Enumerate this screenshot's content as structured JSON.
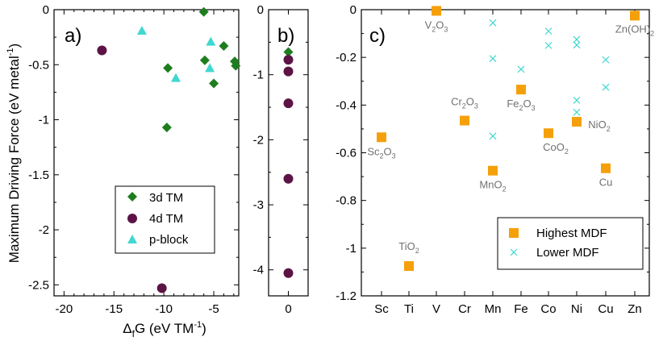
{
  "chart_data": [
    {
      "panel": "a)",
      "type": "scatter",
      "xlabel_main": "Δ",
      "xlabel_sub": "f",
      "xlabel_rest": "G (eV TM",
      "xlabel_sup": "-1",
      "xlabel_end": ")",
      "ylabel_main": "Maximum Driving Force (eV metal",
      "ylabel_sup": "-1",
      "ylabel_end": ")",
      "xlim": [
        -21,
        -2.5
      ],
      "ylim": [
        -2.6,
        0.0
      ],
      "xticks": [
        -20,
        -15,
        -10,
        -5
      ],
      "xtick_labels": [
        "-20",
        "-15",
        "-10",
        "-5"
      ],
      "yticks": [
        0,
        -0.5,
        -1,
        -1.5,
        -2,
        -2.5
      ],
      "ytick_labels": [
        "0",
        "-0.5",
        "-1",
        "-1.5",
        "-2",
        "-2.5"
      ],
      "legend_position": "bottom-right",
      "series": [
        {
          "name": "3d TM",
          "marker": "diamond",
          "color": "#1e7d1e",
          "points": [
            [
              -6.0,
              -0.02
            ],
            [
              -5.9,
              -0.46
            ],
            [
              -4.0,
              -0.33
            ],
            [
              -2.9,
              -0.47
            ],
            [
              -2.8,
              -0.51
            ],
            [
              -9.6,
              -0.53
            ],
            [
              -5.0,
              -0.67
            ],
            [
              -9.7,
              -1.07
            ]
          ]
        },
        {
          "name": "4d TM",
          "marker": "circle",
          "color": "#5c1446",
          "points": [
            [
              -16.2,
              -0.37
            ],
            [
              -10.2,
              -2.53
            ]
          ]
        },
        {
          "name": "p-block",
          "marker": "triangle",
          "color": "#40d8d0",
          "points": [
            [
              -12.2,
              -0.19
            ],
            [
              -5.3,
              -0.29
            ],
            [
              -5.4,
              -0.53
            ],
            [
              -8.8,
              -0.62
            ]
          ]
        }
      ]
    },
    {
      "panel": "b)",
      "type": "scatter",
      "xlim": [
        -1,
        1
      ],
      "ylim": [
        -4.4,
        0.0
      ],
      "xticks": [
        0
      ],
      "xtick_labels": [
        "0"
      ],
      "yticks": [
        0,
        -1,
        -2,
        -3,
        -4
      ],
      "ytick_labels": [
        "0",
        "-1",
        "-2",
        "-3",
        "-4"
      ],
      "series": [
        {
          "name": "3d TM",
          "marker": "diamond",
          "color": "#1e7d1e",
          "points": [
            [
              0,
              -0.65
            ]
          ]
        },
        {
          "name": "4d TM",
          "marker": "circle",
          "color": "#5c1446",
          "points": [
            [
              0,
              -0.77
            ],
            [
              0,
              -0.95
            ],
            [
              0,
              -1.44
            ],
            [
              0,
              -2.6
            ],
            [
              0,
              -4.05
            ]
          ]
        }
      ]
    },
    {
      "panel": "c)",
      "type": "scatter",
      "categories": [
        "Sc",
        "Ti",
        "V",
        "Cr",
        "Mn",
        "Fe",
        "Co",
        "Ni",
        "Cu",
        "Zn"
      ],
      "ylim": [
        -1.2,
        0.0
      ],
      "yticks": [
        0,
        -0.2,
        -0.4,
        -0.6,
        -0.8,
        -1,
        -1.2
      ],
      "ytick_labels": [
        "0",
        "-0.2",
        "-0.4",
        "-0.6",
        "-0.8",
        "-1",
        "-1.2"
      ],
      "legend_position": "bottom-right",
      "series": [
        {
          "name": "Highest MDF",
          "marker": "square",
          "color": "#f5a00a",
          "points": [
            {
              "cat": "Sc",
              "y": -0.535,
              "base": "Sc",
              "sub": "2",
              "base2": "O",
              "sub2": "3"
            },
            {
              "cat": "Ti",
              "y": -1.075,
              "base": "TiO",
              "sub": "2"
            },
            {
              "cat": "V",
              "y": -0.005,
              "base": "V",
              "sub": "2",
              "base2": "O",
              "sub2": "3"
            },
            {
              "cat": "Cr",
              "y": -0.465,
              "base": "Cr",
              "sub": "2",
              "base2": "O",
              "sub2": "3"
            },
            {
              "cat": "Mn",
              "y": -0.675,
              "base": "MnO",
              "sub": "2"
            },
            {
              "cat": "Fe",
              "y": -0.335,
              "base": "Fe",
              "sub": "2",
              "base2": "O",
              "sub2": "3"
            },
            {
              "cat": "Co",
              "y": -0.518,
              "base": "CoO",
              "sub": "2"
            },
            {
              "cat": "Ni",
              "y": -0.47,
              "base": "NiO",
              "sub": "2"
            },
            {
              "cat": "Cu",
              "y": -0.665,
              "base": "Cu"
            },
            {
              "cat": "Zn",
              "y": -0.025,
              "base": "Zn(OH)",
              "sub": "2"
            }
          ]
        },
        {
          "name": "Lower MDF",
          "marker": "x",
          "color": "#40d8d0",
          "points": [
            {
              "cat": "Mn",
              "y": -0.055
            },
            {
              "cat": "Mn",
              "y": -0.205
            },
            {
              "cat": "Mn",
              "y": -0.53
            },
            {
              "cat": "Fe",
              "y": -0.25
            },
            {
              "cat": "Co",
              "y": -0.09
            },
            {
              "cat": "Co",
              "y": -0.15
            },
            {
              "cat": "Co",
              "y": -0.515
            },
            {
              "cat": "Ni",
              "y": -0.125
            },
            {
              "cat": "Ni",
              "y": -0.148
            },
            {
              "cat": "Ni",
              "y": -0.38
            },
            {
              "cat": "Ni",
              "y": -0.43
            },
            {
              "cat": "Cu",
              "y": -0.21
            },
            {
              "cat": "Cu",
              "y": -0.325
            }
          ]
        }
      ]
    }
  ]
}
